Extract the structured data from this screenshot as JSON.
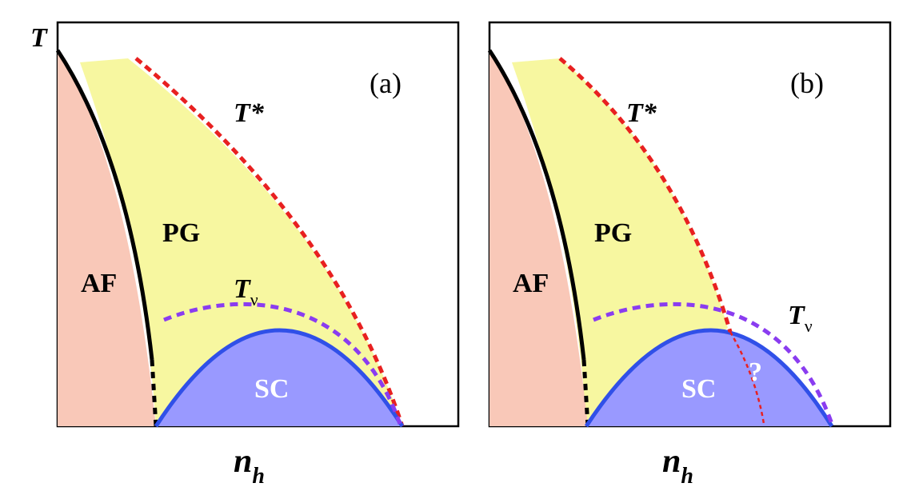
{
  "y_axis_label": "T",
  "panels": [
    {
      "label": "(a)",
      "af": "AF",
      "pg": "PG",
      "sc": "SC",
      "t_star": "T*",
      "t_nu": {
        "main": "T",
        "sub": "ν"
      },
      "x_axis_label": {
        "main": "n",
        "sub": "h"
      }
    },
    {
      "label": "(b)",
      "af": "AF",
      "pg": "PG",
      "sc": "SC",
      "t_star": "T*",
      "t_nu": {
        "main": "T",
        "sub": "ν"
      },
      "x_axis_label": {
        "main": "n",
        "sub": "h"
      },
      "question": "?"
    }
  ]
}
